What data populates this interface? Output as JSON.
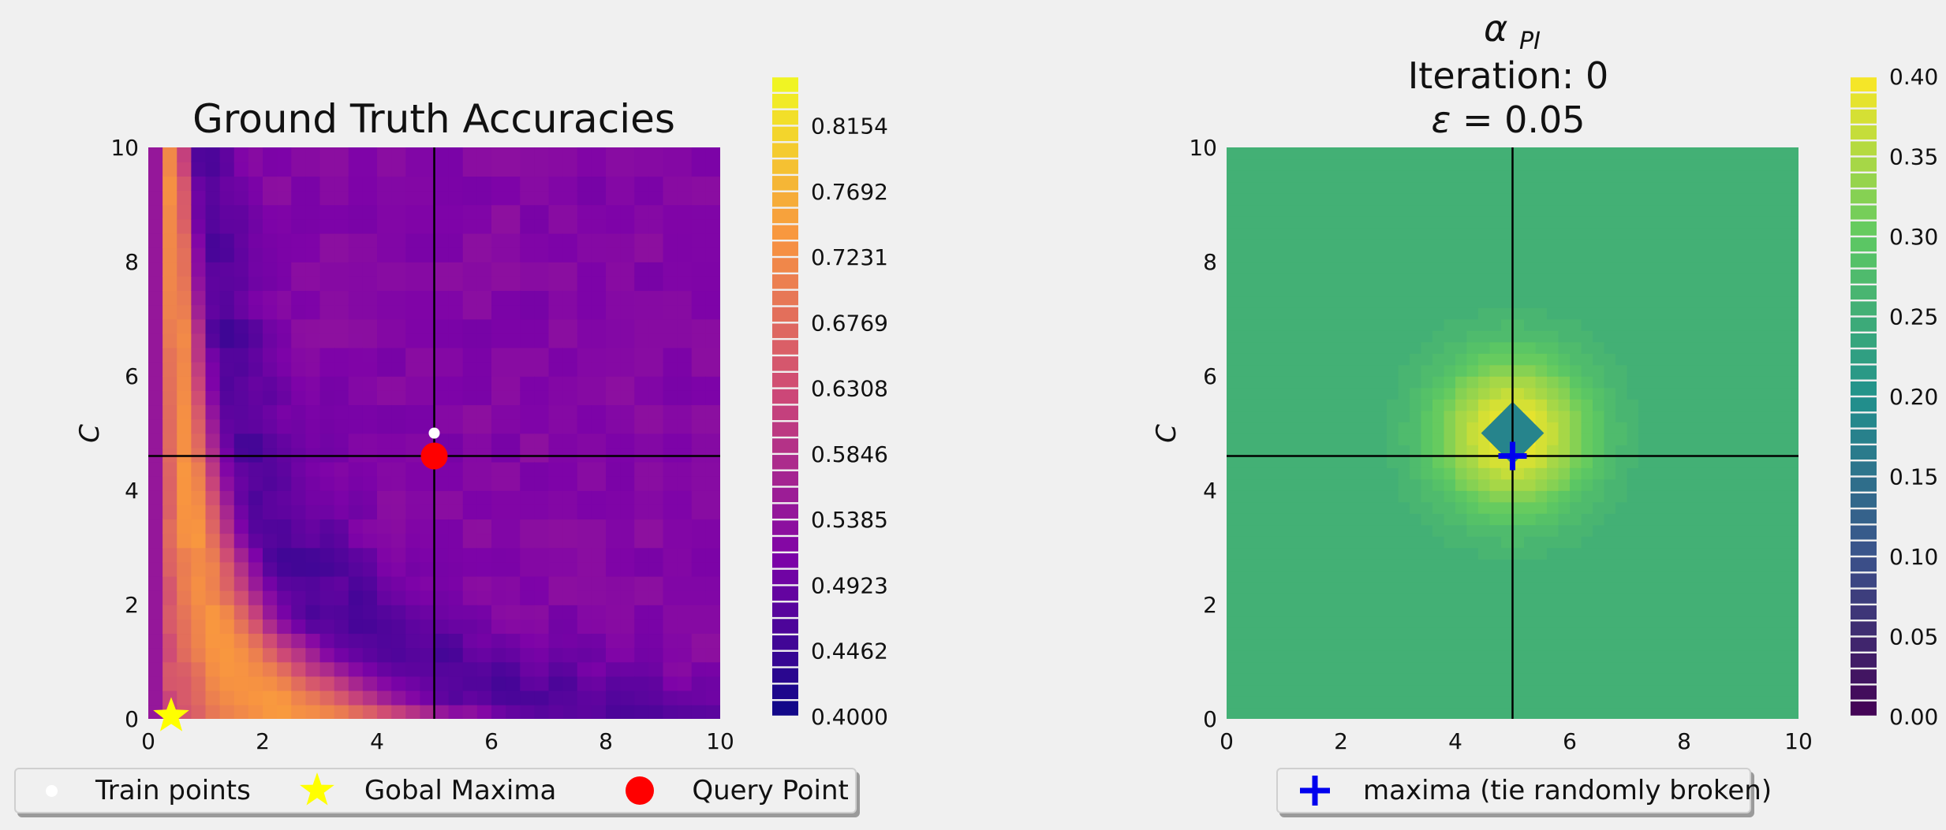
{
  "chart_data": [
    {
      "type": "heatmap",
      "title": "Ground Truth Accuracies",
      "xlabel": "",
      "ylabel": "C",
      "xlim": [
        0,
        10
      ],
      "ylim": [
        0,
        10
      ],
      "xticks": [
        "0",
        "2",
        "4",
        "6",
        "8",
        "10"
      ],
      "yticks": [
        "0",
        "2",
        "4",
        "6",
        "8",
        "10"
      ],
      "colormap": "plasma",
      "colorbar_range": [
        0.4,
        0.85
      ],
      "colorbar_ticks": [
        "0.4000",
        "0.4462",
        "0.4923",
        "0.5385",
        "0.5846",
        "0.6308",
        "0.6769",
        "0.7231",
        "0.7692",
        "0.8154"
      ],
      "crosshair": {
        "x": 5.0,
        "y": 4.6
      },
      "train_points": [
        {
          "x": 5.0,
          "y": 5.0
        }
      ],
      "global_maxima": {
        "x": 0.4,
        "y": 0.05
      },
      "query_point": {
        "x": 5.0,
        "y": 4.6
      },
      "legend": [
        "Train points",
        "Gobal Maxima",
        "Query Point"
      ]
    },
    {
      "type": "heatmap",
      "title_symbol": "α",
      "title_subscript": "PI",
      "title_line2": "Iteration: 0",
      "title_line3_symbol": "ε",
      "title_line3_value": " = 0.05",
      "xlabel": "",
      "ylabel": "C",
      "xlim": [
        0,
        10
      ],
      "ylim": [
        0,
        10
      ],
      "xticks": [
        "0",
        "2",
        "4",
        "6",
        "8",
        "10"
      ],
      "yticks": [
        "0",
        "2",
        "4",
        "6",
        "8",
        "10"
      ],
      "colormap": "viridis",
      "colorbar_range": [
        0.0,
        0.4
      ],
      "colorbar_ticks": [
        "0.00",
        "0.05",
        "0.10",
        "0.15",
        "0.20",
        "0.25",
        "0.30",
        "0.35",
        "0.40"
      ],
      "crosshair": {
        "x": 5.0,
        "y": 4.6
      },
      "peak": {
        "x": 5.0,
        "y": 5.0,
        "value": 0.4
      },
      "background_value": 0.25,
      "maxima_marker": {
        "x": 5.0,
        "y": 4.6
      },
      "legend": [
        "maxima (tie randomly broken)"
      ]
    }
  ],
  "colors": {
    "train_point": "#ffffff",
    "global_maxima": "#ffff00",
    "query_point": "#ff0000",
    "maxima_marker": "#0000ee",
    "crosshair": "#000000",
    "background": "#f0f0f0"
  }
}
